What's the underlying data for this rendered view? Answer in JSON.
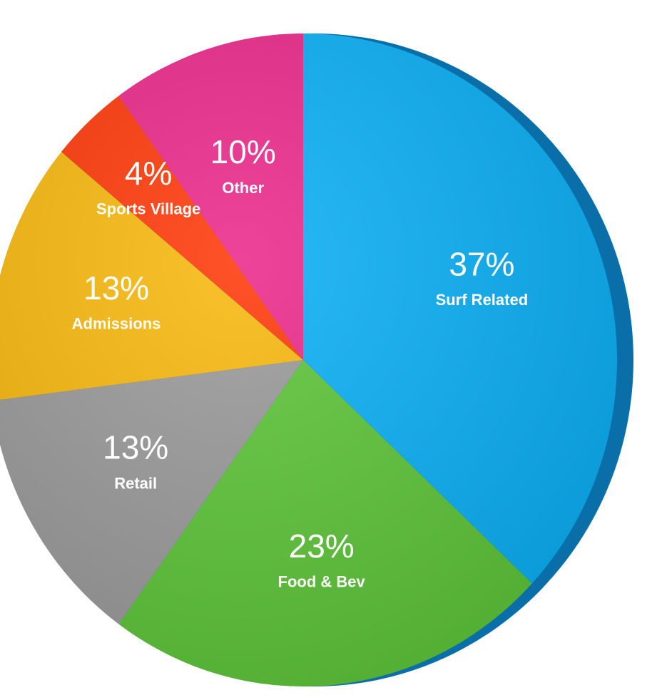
{
  "chart_data": {
    "type": "pie",
    "categories": [
      "Surf Related",
      "Food & Bev",
      "Retail",
      "Admissions",
      "Sports Village",
      "Other"
    ],
    "values": [
      37,
      23,
      13,
      13,
      4,
      10
    ],
    "value_labels": [
      "37%",
      "23%",
      "13%",
      "13%",
      "4%",
      "10%"
    ],
    "colors": [
      "#0bb0f5",
      "#5ec63a",
      "#9b9b9b",
      "#f8b90f",
      "#ff3a0b",
      "#eb2a8b"
    ]
  }
}
